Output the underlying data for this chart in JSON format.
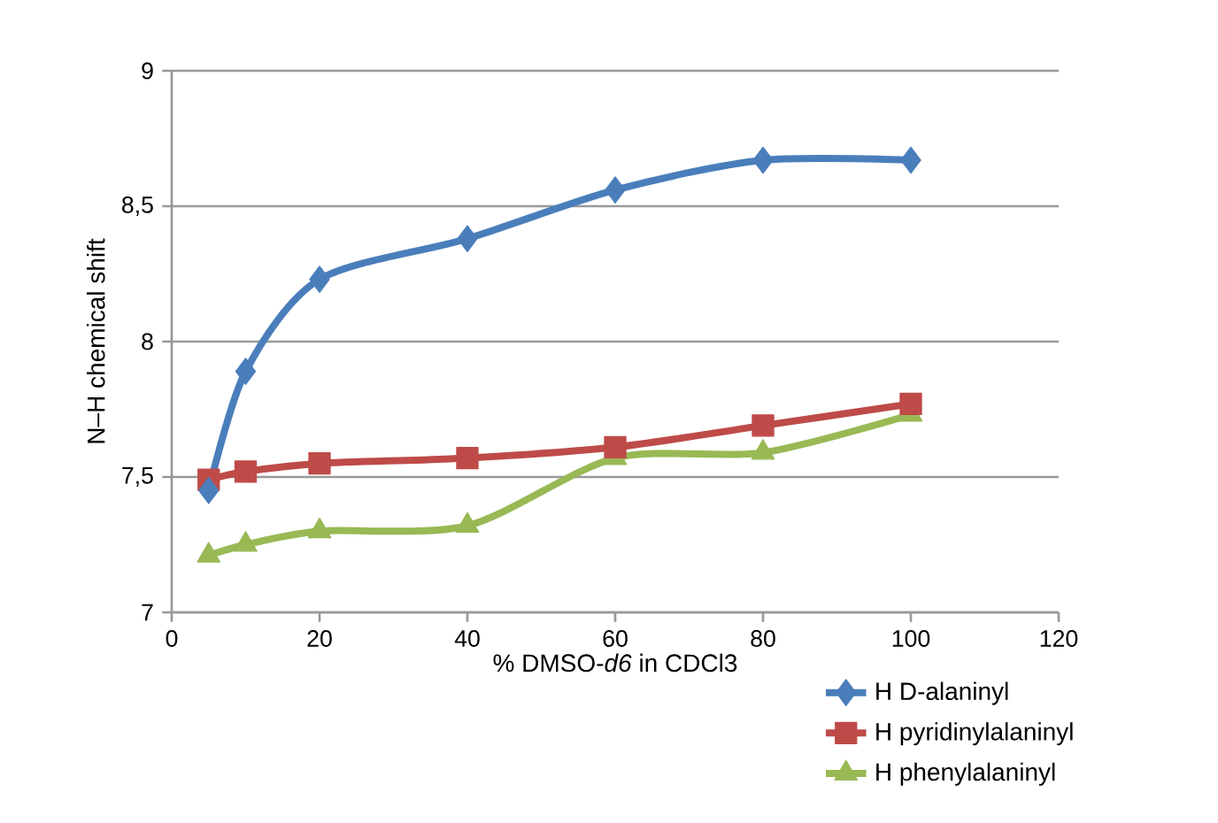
{
  "chart_data": {
    "type": "line",
    "xlabel": "% DMSO-*d6* in CDCl3",
    "ylabel": "N–H chemical shift",
    "xlim": [
      0,
      120
    ],
    "xticks": [
      0,
      20,
      40,
      60,
      80,
      100,
      120
    ],
    "ylim": [
      7,
      9
    ],
    "yticks": [
      7,
      {
        "value": 7.5,
        "label": "7,5"
      },
      8,
      {
        "value": 8.5,
        "label": "8,5"
      },
      9
    ],
    "grid": "y",
    "legend": "bottom right",
    "line_style": "solid",
    "series": [
      {
        "name": "H D-alaninyl",
        "color": "#4a7ebb",
        "marker": "diamond",
        "x": [
          5,
          10,
          20,
          40,
          60,
          80,
          100
        ],
        "values": [
          7.45,
          7.89,
          8.23,
          8.38,
          8.56,
          8.67,
          8.67
        ]
      },
      {
        "name": "H pyridinylalaninyl",
        "color": "#be4b48",
        "marker": "square",
        "x": [
          5,
          10,
          20,
          40,
          60,
          80,
          100
        ],
        "values": [
          7.49,
          7.52,
          7.55,
          7.57,
          7.61,
          7.69,
          7.77
        ]
      },
      {
        "name": "H phenylalaninyl",
        "color": "#98b954",
        "marker": "triangle",
        "x": [
          5,
          10,
          20,
          40,
          60,
          80,
          100
        ],
        "values": [
          7.21,
          7.25,
          7.3,
          7.32,
          7.57,
          7.59,
          7.73
        ]
      }
    ]
  }
}
